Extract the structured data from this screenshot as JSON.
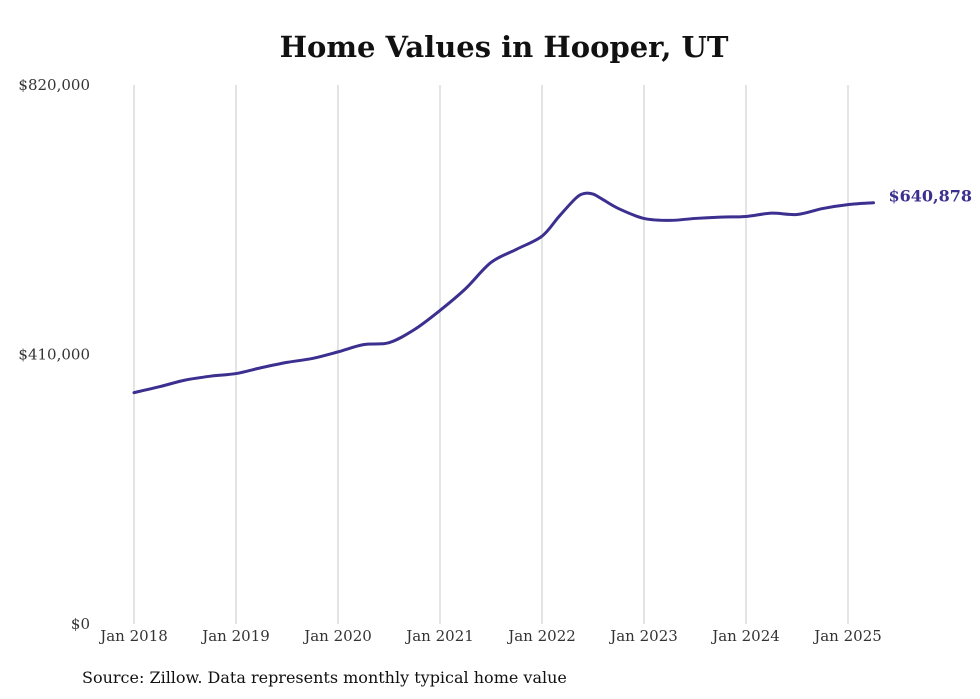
{
  "title": "Home Values in Hooper, UT",
  "source": "Source: Zillow. Data represents monthly typical home value",
  "colors": {
    "line": "#3b2f8f",
    "grid": "#c8c8c8"
  },
  "chart_data": {
    "type": "line",
    "title": "Home Values in Hooper, UT",
    "xlabel": "",
    "ylabel": "",
    "ylim": [
      0,
      820000
    ],
    "xlim": [
      "2018-01",
      "2025-04"
    ],
    "grid": {
      "vertical": true,
      "horizontal": false
    },
    "legend": "none",
    "y_ticks": [
      {
        "value": 0,
        "label": "$0"
      },
      {
        "value": 410000,
        "label": "$410,000"
      },
      {
        "value": 820000,
        "label": "$820,000"
      }
    ],
    "x_ticks": [
      {
        "value": "2018-01",
        "label": "Jan 2018"
      },
      {
        "value": "2019-01",
        "label": "Jan 2019"
      },
      {
        "value": "2020-01",
        "label": "Jan 2020"
      },
      {
        "value": "2021-01",
        "label": "Jan 2021"
      },
      {
        "value": "2022-01",
        "label": "Jan 2022"
      },
      {
        "value": "2023-01",
        "label": "Jan 2023"
      },
      {
        "value": "2024-01",
        "label": "Jan 2024"
      },
      {
        "value": "2025-01",
        "label": "Jan 2025"
      }
    ],
    "series": [
      {
        "color": "#3b2f8f",
        "end_label": "$640,878",
        "points": [
          {
            "x": "2018-01",
            "y": 352000
          },
          {
            "x": "2018-04",
            "y": 361000
          },
          {
            "x": "2018-07",
            "y": 371000
          },
          {
            "x": "2018-10",
            "y": 377000
          },
          {
            "x": "2019-01",
            "y": 381000
          },
          {
            "x": "2019-04",
            "y": 390000
          },
          {
            "x": "2019-07",
            "y": 398000
          },
          {
            "x": "2019-10",
            "y": 404000
          },
          {
            "x": "2020-01",
            "y": 414000
          },
          {
            "x": "2020-04",
            "y": 425000
          },
          {
            "x": "2020-07",
            "y": 428000
          },
          {
            "x": "2020-10",
            "y": 448000
          },
          {
            "x": "2021-01",
            "y": 477000
          },
          {
            "x": "2021-04",
            "y": 510000
          },
          {
            "x": "2021-07",
            "y": 550000
          },
          {
            "x": "2021-10",
            "y": 570000
          },
          {
            "x": "2022-01",
            "y": 590000
          },
          {
            "x": "2022-03",
            "y": 620000
          },
          {
            "x": "2022-05",
            "y": 648000
          },
          {
            "x": "2022-06",
            "y": 655000
          },
          {
            "x": "2022-07",
            "y": 654000
          },
          {
            "x": "2022-08",
            "y": 647000
          },
          {
            "x": "2022-10",
            "y": 632000
          },
          {
            "x": "2023-01",
            "y": 617000
          },
          {
            "x": "2023-04",
            "y": 614000
          },
          {
            "x": "2023-07",
            "y": 617000
          },
          {
            "x": "2023-10",
            "y": 619000
          },
          {
            "x": "2024-01",
            "y": 620000
          },
          {
            "x": "2024-04",
            "y": 625000
          },
          {
            "x": "2024-07",
            "y": 623000
          },
          {
            "x": "2024-10",
            "y": 632000
          },
          {
            "x": "2025-01",
            "y": 638000
          },
          {
            "x": "2025-04",
            "y": 640878
          }
        ]
      }
    ]
  }
}
